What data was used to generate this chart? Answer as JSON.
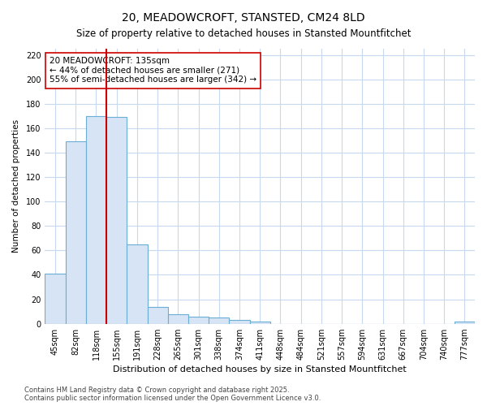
{
  "title": "20, MEADOWCROFT, STANSTED, CM24 8LD",
  "subtitle": "Size of property relative to detached houses in Stansted Mountfitchet",
  "xlabel": "Distribution of detached houses by size in Stansted Mountfitchet",
  "ylabel": "Number of detached properties",
  "categories": [
    "45sqm",
    "82sqm",
    "118sqm",
    "155sqm",
    "191sqm",
    "228sqm",
    "265sqm",
    "301sqm",
    "338sqm",
    "374sqm",
    "411sqm",
    "448sqm",
    "484sqm",
    "521sqm",
    "557sqm",
    "594sqm",
    "631sqm",
    "667sqm",
    "704sqm",
    "740sqm",
    "777sqm"
  ],
  "values": [
    41,
    149,
    170,
    169,
    65,
    14,
    8,
    6,
    5,
    3,
    2,
    0,
    0,
    0,
    0,
    0,
    0,
    0,
    0,
    0,
    2
  ],
  "bar_color": "#d6e4f5",
  "bar_edge_color": "#6aaed6",
  "line_x_index": 2.5,
  "annotation_line1": "20 MEADOWCROFT: 135sqm",
  "annotation_line2": "← 44% of detached houses are smaller (271)",
  "annotation_line3": "55% of semi-detached houses are larger (342) →",
  "annotation_box_color": "#ffffff",
  "annotation_box_edge_color": "#cc0000",
  "line_color": "#cc0000",
  "footer1": "Contains HM Land Registry data © Crown copyright and database right 2025.",
  "footer2": "Contains public sector information licensed under the Open Government Licence v3.0.",
  "bg_color": "#ffffff",
  "plot_bg_color": "#ffffff",
  "grid_color": "#c8d8ee",
  "ylim": [
    0,
    225
  ],
  "yticks": [
    0,
    20,
    40,
    60,
    80,
    100,
    120,
    140,
    160,
    180,
    200,
    220
  ],
  "title_fontsize": 10,
  "subtitle_fontsize": 8.5,
  "xlabel_fontsize": 8,
  "ylabel_fontsize": 7.5,
  "tick_fontsize": 7,
  "annotation_fontsize": 7.5,
  "footer_fontsize": 6
}
